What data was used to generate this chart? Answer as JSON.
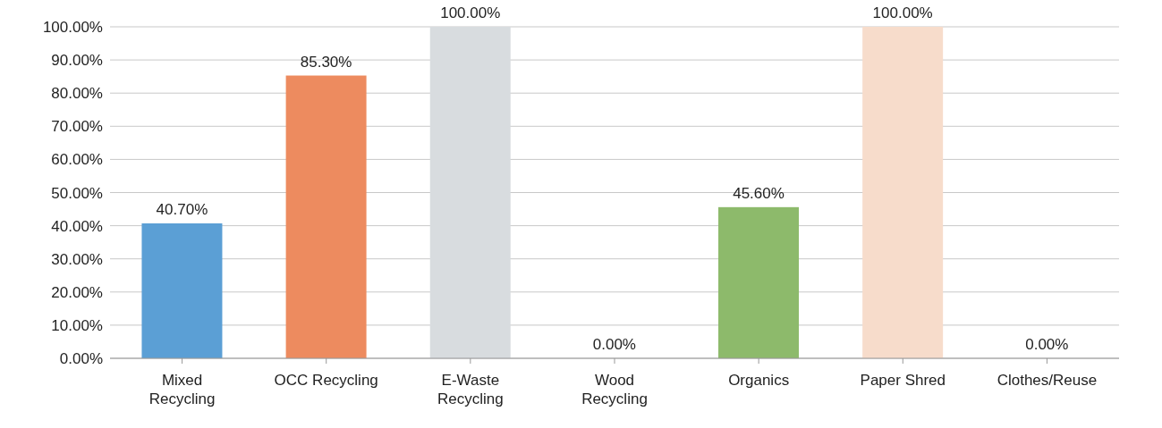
{
  "chart_data": {
    "type": "bar",
    "categories": [
      "Mixed Recycling",
      "OCC Recycling",
      "E-Waste Recycling",
      "Wood Recycling",
      "Organics",
      "Paper Shred",
      "Clothes/Reuse"
    ],
    "values": [
      40.7,
      85.3,
      100,
      0,
      45.6,
      100,
      0
    ],
    "colors": [
      "#5b9fd5",
      "#ed8b5f",
      "#d8dcdf",
      "#a5a5a5",
      "#8dba6b",
      "#f7dccb",
      "#4472c4"
    ],
    "value_labels": [
      "40.70%",
      "85.30%",
      "100.00%",
      "0.00%",
      "45.60%",
      "100.00%",
      "0.00%"
    ],
    "ylim": [
      0,
      100
    ],
    "yticks": [
      {
        "value": 0,
        "label": "0.00%"
      },
      {
        "value": 10,
        "label": "10.00%"
      },
      {
        "value": 20,
        "label": "20.00%"
      },
      {
        "value": 30,
        "label": "30.00%"
      },
      {
        "value": 40,
        "label": "40.00%"
      },
      {
        "value": 50,
        "label": "50.00%"
      },
      {
        "value": 60,
        "label": "60.00%"
      },
      {
        "value": 70,
        "label": "70.00%"
      },
      {
        "value": 80,
        "label": "80.00%"
      },
      {
        "value": 90,
        "label": "90.00%"
      },
      {
        "value": 100,
        "label": "100.00%"
      }
    ],
    "grid": "y"
  }
}
